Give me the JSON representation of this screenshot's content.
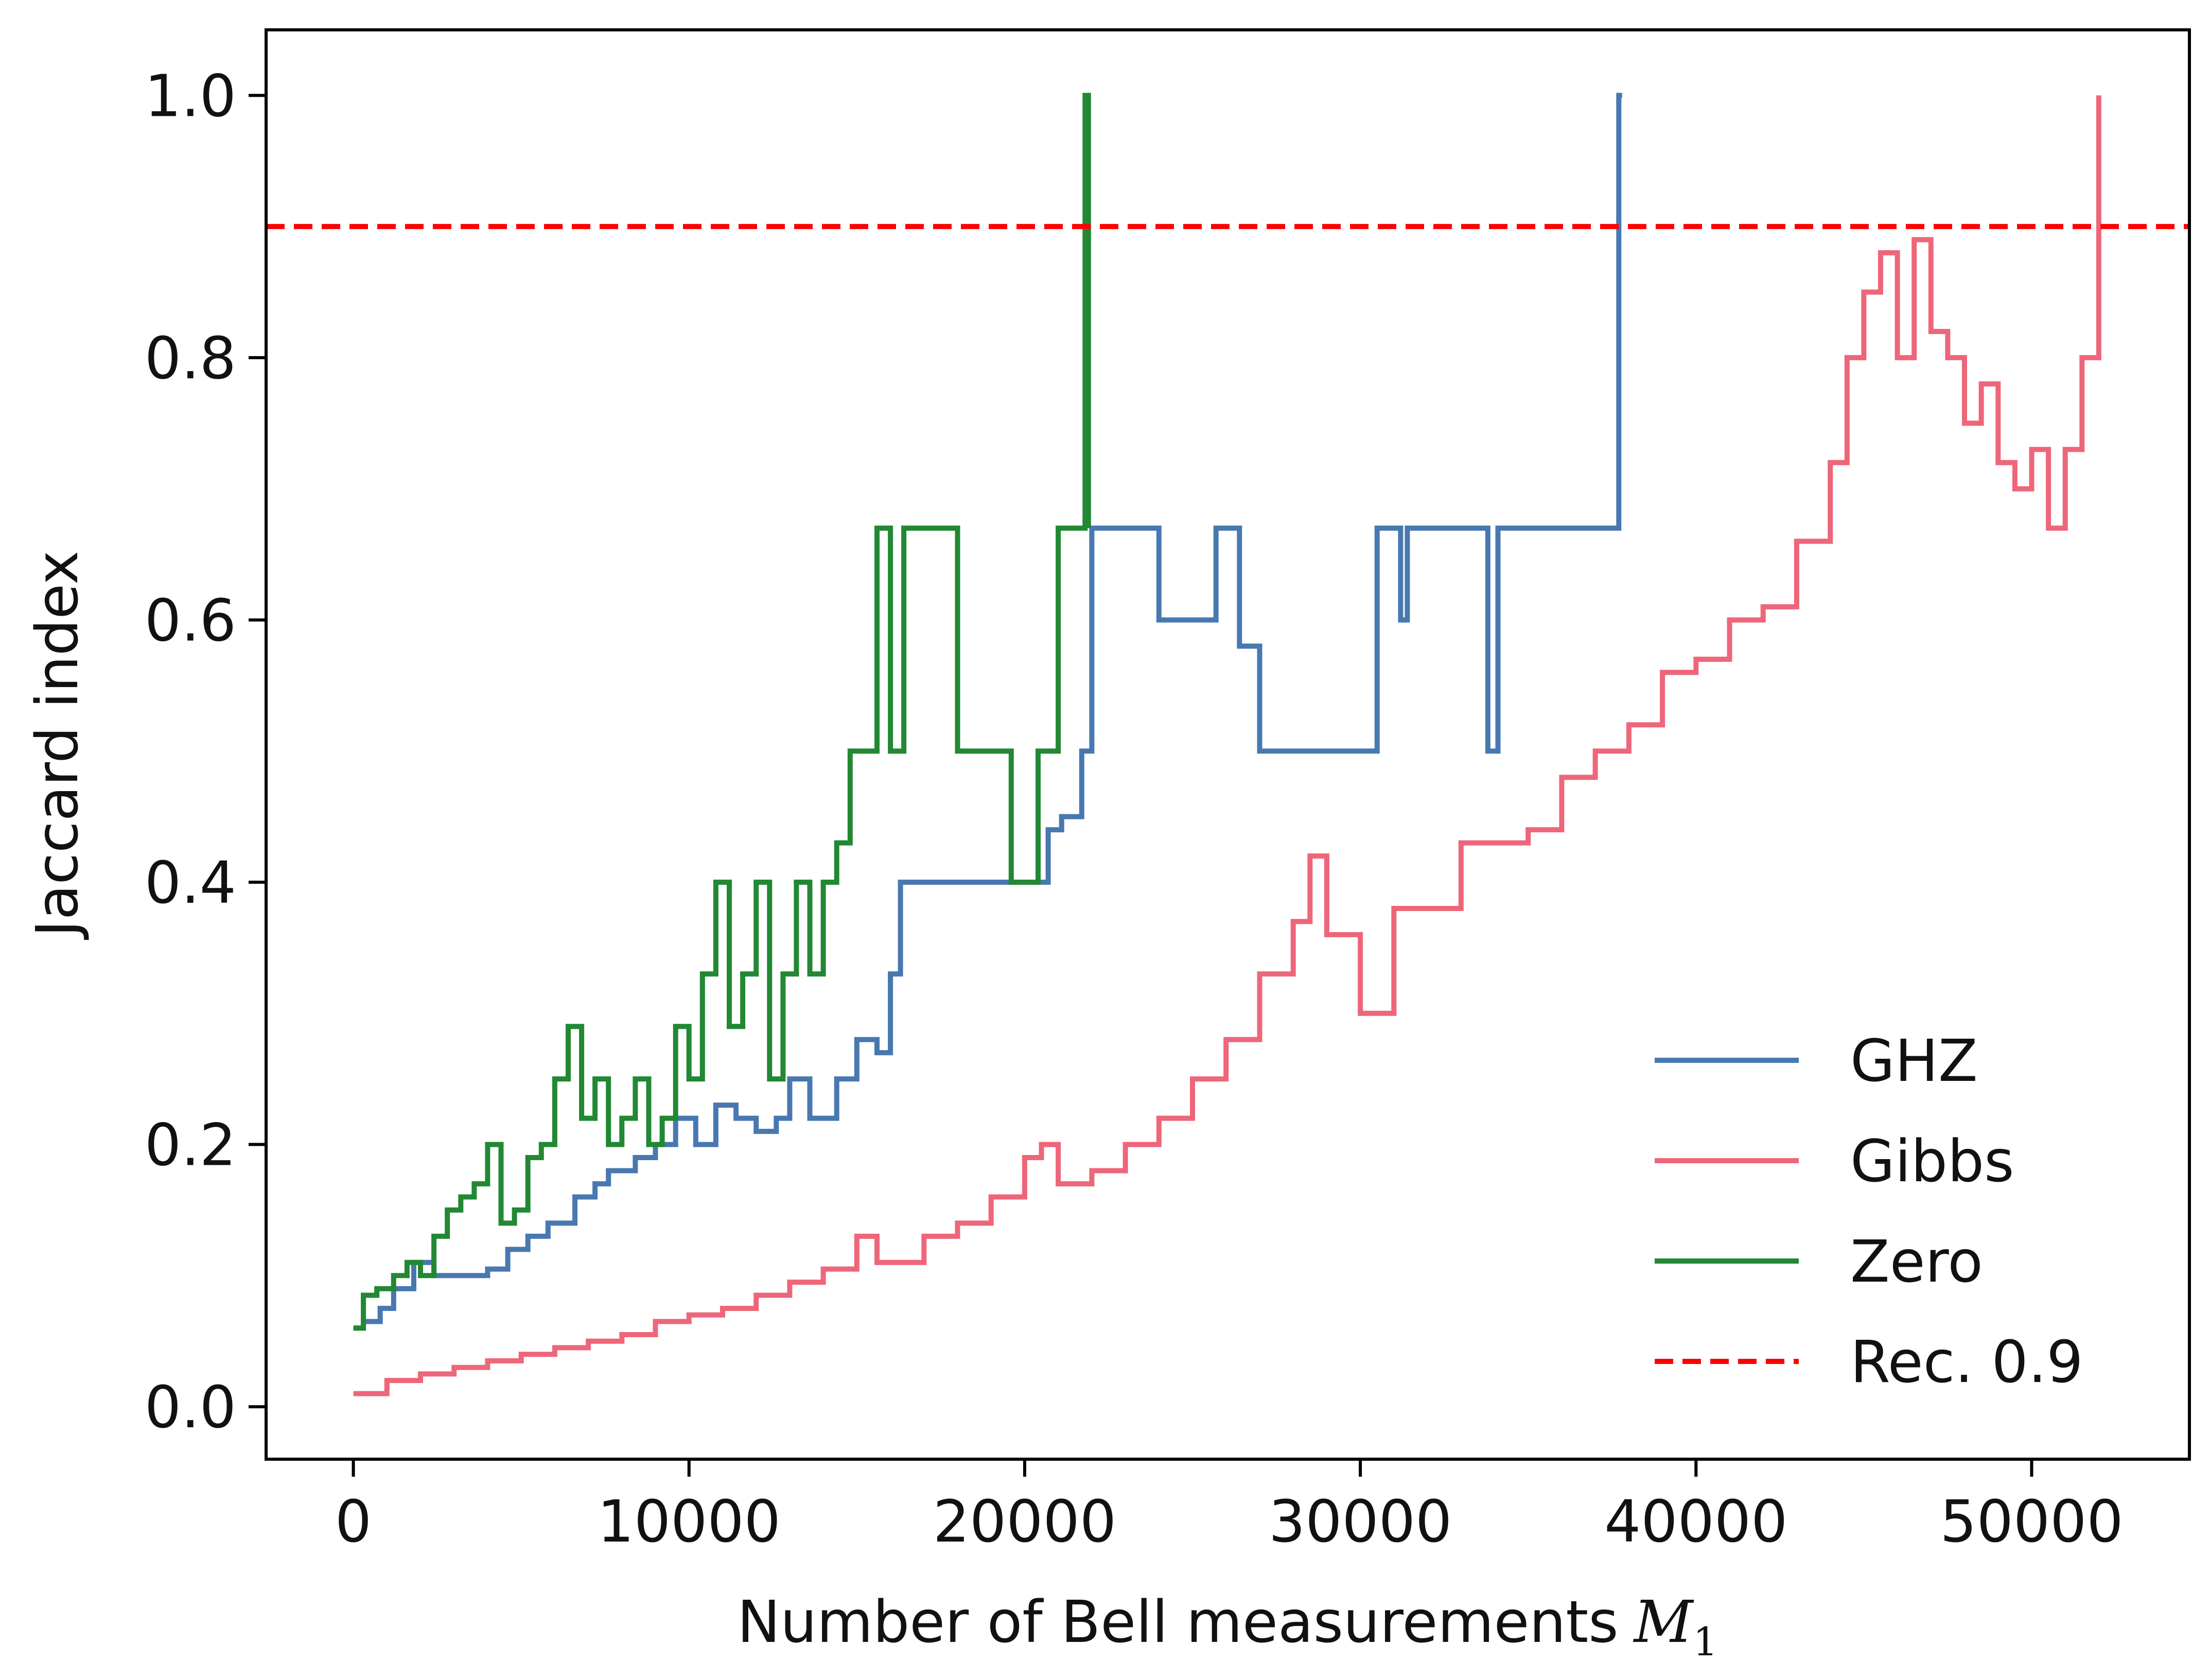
{
  "chart_data": {
    "type": "line",
    "xlabel": "Number of Bell measurements",
    "xlabel_math": "M",
    "xlabel_sub": "1",
    "ylabel": "Jaccard index",
    "xlim": [
      -2600,
      54700
    ],
    "ylim": [
      -0.04,
      1.05
    ],
    "xticks": [
      0,
      10000,
      20000,
      30000,
      40000,
      50000
    ],
    "xtick_labels": [
      "0",
      "10000",
      "20000",
      "30000",
      "40000",
      "50000"
    ],
    "yticks": [
      0.0,
      0.2,
      0.4,
      0.6,
      0.8,
      1.0
    ],
    "ytick_labels": [
      "0.0",
      "0.2",
      "0.4",
      "0.6",
      "0.8",
      "1.0"
    ],
    "grid": false,
    "legend_position": "lower-right",
    "series": [
      {
        "name": "GHZ",
        "color": "#4878b0",
        "x": [
          0,
          300,
          800,
          1200,
          1800,
          2400,
          3200,
          4000,
          4600,
          5200,
          5800,
          6600,
          7200,
          7600,
          8400,
          9000,
          9600,
          10200,
          10800,
          11400,
          12000,
          12600,
          13000,
          13600,
          14400,
          15000,
          15600,
          16000,
          16300,
          17000,
          18000,
          19000,
          20000,
          20700,
          21100,
          21700,
          22000,
          23000,
          24000,
          25000,
          25700,
          26400,
          27000,
          28000,
          29000,
          30200,
          30500,
          31200,
          31400,
          33600,
          33800,
          34100,
          35000,
          36000,
          37000,
          37700,
          37700,
          37800
        ],
        "y": [
          0.06,
          0.065,
          0.075,
          0.09,
          0.11,
          0.1,
          0.1,
          0.105,
          0.12,
          0.13,
          0.14,
          0.16,
          0.17,
          0.18,
          0.19,
          0.2,
          0.22,
          0.2,
          0.23,
          0.22,
          0.21,
          0.22,
          0.25,
          0.22,
          0.25,
          0.28,
          0.27,
          0.33,
          0.4,
          0.4,
          0.4,
          0.4,
          0.4,
          0.44,
          0.45,
          0.5,
          0.67,
          0.67,
          0.6,
          0.6,
          0.67,
          0.58,
          0.5,
          0.5,
          0.5,
          0.5,
          0.67,
          0.6,
          0.67,
          0.67,
          0.5,
          0.67,
          0.67,
          0.67,
          0.67,
          0.67,
          1.0,
          1.0
        ]
      },
      {
        "name": "Gibbs",
        "color": "#ee667a",
        "x": [
          0,
          1000,
          2000,
          3000,
          4000,
          5000,
          6000,
          7000,
          8000,
          9000,
          10000,
          11000,
          12000,
          13000,
          14000,
          15000,
          15600,
          16000,
          17000,
          18000,
          19000,
          20000,
          20500,
          21000,
          22000,
          23000,
          24000,
          25000,
          26000,
          27000,
          28000,
          28500,
          29000,
          30000,
          31000,
          32000,
          33000,
          34000,
          35000,
          36000,
          37000,
          38000,
          39000,
          40000,
          41000,
          42000,
          43000,
          44000,
          44500,
          45000,
          45500,
          46000,
          46500,
          47000,
          47500,
          48000,
          48500,
          49000,
          49500,
          50000,
          50500,
          51000,
          51500,
          52000,
          52000
        ],
        "y": [
          0.01,
          0.02,
          0.025,
          0.03,
          0.035,
          0.04,
          0.045,
          0.05,
          0.055,
          0.065,
          0.07,
          0.075,
          0.085,
          0.095,
          0.105,
          0.13,
          0.11,
          0.11,
          0.13,
          0.14,
          0.16,
          0.19,
          0.2,
          0.17,
          0.18,
          0.2,
          0.22,
          0.25,
          0.28,
          0.33,
          0.37,
          0.42,
          0.36,
          0.3,
          0.38,
          0.38,
          0.43,
          0.43,
          0.44,
          0.48,
          0.5,
          0.52,
          0.56,
          0.57,
          0.6,
          0.61,
          0.66,
          0.72,
          0.8,
          0.85,
          0.88,
          0.8,
          0.89,
          0.82,
          0.8,
          0.75,
          0.78,
          0.72,
          0.7,
          0.73,
          0.67,
          0.73,
          0.8,
          0.8,
          1.0
        ]
      },
      {
        "name": "Zero",
        "color": "#228833",
        "x": [
          0,
          300,
          700,
          1200,
          1600,
          2000,
          2400,
          2800,
          3200,
          3600,
          4000,
          4400,
          4800,
          5200,
          5600,
          6000,
          6400,
          6800,
          7200,
          7600,
          8000,
          8400,
          8800,
          9200,
          9600,
          10000,
          10400,
          10800,
          11200,
          11600,
          12000,
          12400,
          12800,
          13200,
          13600,
          14000,
          14400,
          14800,
          15200,
          15600,
          16000,
          16400,
          16800,
          17200,
          17600,
          18000,
          18800,
          19600,
          20400,
          21000,
          21500,
          21800,
          21800,
          21900
        ],
        "y": [
          0.06,
          0.085,
          0.09,
          0.1,
          0.11,
          0.1,
          0.13,
          0.15,
          0.16,
          0.17,
          0.2,
          0.14,
          0.15,
          0.19,
          0.2,
          0.25,
          0.29,
          0.22,
          0.25,
          0.2,
          0.22,
          0.25,
          0.2,
          0.22,
          0.29,
          0.25,
          0.33,
          0.4,
          0.29,
          0.33,
          0.4,
          0.25,
          0.33,
          0.4,
          0.33,
          0.4,
          0.43,
          0.5,
          0.5,
          0.67,
          0.5,
          0.67,
          0.67,
          0.67,
          0.67,
          0.5,
          0.5,
          0.4,
          0.5,
          0.67,
          0.67,
          0.67,
          1.0,
          0.67
        ]
      },
      {
        "name": "Rec. 0.9",
        "color": "#ff0000",
        "dashed": true,
        "y_constant": 0.9
      }
    ]
  }
}
